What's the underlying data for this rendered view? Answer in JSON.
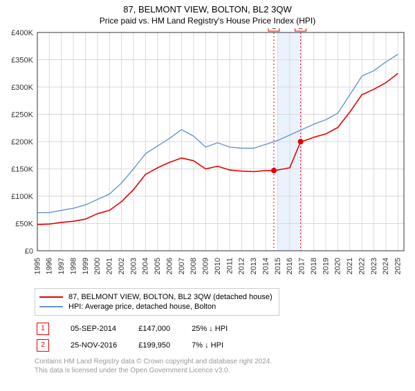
{
  "title": "87, BELMONT VIEW, BOLTON, BL2 3QW",
  "subtitle": "Price paid vs. HM Land Registry's House Price Index (HPI)",
  "chart": {
    "type": "line",
    "background_color": "#ffffff",
    "grid_color": "#d9d9d9",
    "border_color": "#333333",
    "x": {
      "min": 1995,
      "max": 2025.5,
      "ticks": [
        1995,
        1996,
        1997,
        1998,
        1999,
        2000,
        2001,
        2002,
        2003,
        2004,
        2005,
        2006,
        2007,
        2008,
        2009,
        2010,
        2011,
        2012,
        2013,
        2014,
        2015,
        2016,
        2017,
        2018,
        2019,
        2020,
        2021,
        2022,
        2023,
        2024,
        2025
      ]
    },
    "y": {
      "min": 0,
      "max": 400000,
      "tick_step": 50000,
      "prefix": "£",
      "suffix": "K",
      "ticks": [
        0,
        50000,
        100000,
        150000,
        200000,
        250000,
        300000,
        350000,
        400000
      ]
    },
    "highlight_band": {
      "from": 2015,
      "to": 2017,
      "color": "#eaf2fb"
    },
    "markers": [
      {
        "id": "1",
        "x": 2014.68,
        "y": 147000,
        "line_color": "#e60000",
        "dash": "2,3"
      },
      {
        "id": "2",
        "x": 2016.9,
        "y": 199950,
        "line_color": "#e60000",
        "dash": "2,3"
      }
    ],
    "series": [
      {
        "name": "87, BELMONT VIEW, BOLTON, BL2 3QW (detached house)",
        "color": "#e60000",
        "width": 1.6,
        "values": [
          [
            1995,
            48000
          ],
          [
            1996,
            49000
          ],
          [
            1997,
            52000
          ],
          [
            1998,
            54000
          ],
          [
            1999,
            58000
          ],
          [
            2000,
            68000
          ],
          [
            2001,
            74000
          ],
          [
            2002,
            90000
          ],
          [
            2003,
            112000
          ],
          [
            2004,
            140000
          ],
          [
            2005,
            152000
          ],
          [
            2006,
            162000
          ],
          [
            2007,
            170000
          ],
          [
            2008,
            165000
          ],
          [
            2009,
            150000
          ],
          [
            2010,
            155000
          ],
          [
            2011,
            148000
          ],
          [
            2012,
            146000
          ],
          [
            2013,
            145000
          ],
          [
            2014,
            147000
          ],
          [
            2014.68,
            147000
          ],
          [
            2015,
            148000
          ],
          [
            2016,
            152000
          ],
          [
            2016.9,
            199950
          ],
          [
            2017,
            200000
          ],
          [
            2018,
            208000
          ],
          [
            2019,
            214000
          ],
          [
            2020,
            226000
          ],
          [
            2021,
            254000
          ],
          [
            2022,
            286000
          ],
          [
            2023,
            296000
          ],
          [
            2024,
            308000
          ],
          [
            2025,
            325000
          ]
        ]
      },
      {
        "name": "HPI: Average price, detached house, Bolton",
        "color": "#6694d1",
        "width": 1.4,
        "values": [
          [
            1995,
            70000
          ],
          [
            1996,
            70000
          ],
          [
            1997,
            74000
          ],
          [
            1998,
            78000
          ],
          [
            1999,
            84000
          ],
          [
            2000,
            94000
          ],
          [
            2001,
            104000
          ],
          [
            2002,
            124000
          ],
          [
            2003,
            150000
          ],
          [
            2004,
            178000
          ],
          [
            2005,
            192000
          ],
          [
            2006,
            206000
          ],
          [
            2007,
            222000
          ],
          [
            2008,
            210000
          ],
          [
            2009,
            190000
          ],
          [
            2010,
            198000
          ],
          [
            2011,
            190000
          ],
          [
            2012,
            188000
          ],
          [
            2013,
            188000
          ],
          [
            2014,
            195000
          ],
          [
            2015,
            202000
          ],
          [
            2016,
            212000
          ],
          [
            2017,
            222000
          ],
          [
            2018,
            232000
          ],
          [
            2019,
            240000
          ],
          [
            2020,
            252000
          ],
          [
            2021,
            286000
          ],
          [
            2022,
            320000
          ],
          [
            2023,
            330000
          ],
          [
            2024,
            346000
          ],
          [
            2025,
            360000
          ]
        ]
      }
    ],
    "point_markers": [
      {
        "x": 2014.68,
        "y": 147000,
        "color": "#e60000",
        "r": 4
      },
      {
        "x": 2016.9,
        "y": 199950,
        "color": "#e60000",
        "r": 4
      }
    ]
  },
  "legend": {
    "items": [
      {
        "label": "87, BELMONT VIEW, BOLTON, BL2 3QW (detached house)",
        "color": "#e60000"
      },
      {
        "label": "HPI: Average price, detached house, Bolton",
        "color": "#6694d1"
      }
    ]
  },
  "sales": [
    {
      "id": "1",
      "date": "05-SEP-2014",
      "price": "£147,000",
      "delta": "25% ↓ HPI",
      "badge_color": "#e60000"
    },
    {
      "id": "2",
      "date": "25-NOV-2016",
      "price": "£199,950",
      "delta": "7% ↓ HPI",
      "badge_color": "#e60000"
    }
  ],
  "attribution_line1": "Contains HM Land Registry data © Crown copyright and database right 2024.",
  "attribution_line2": "This data is licensed under the Open Government Licence v3.0."
}
